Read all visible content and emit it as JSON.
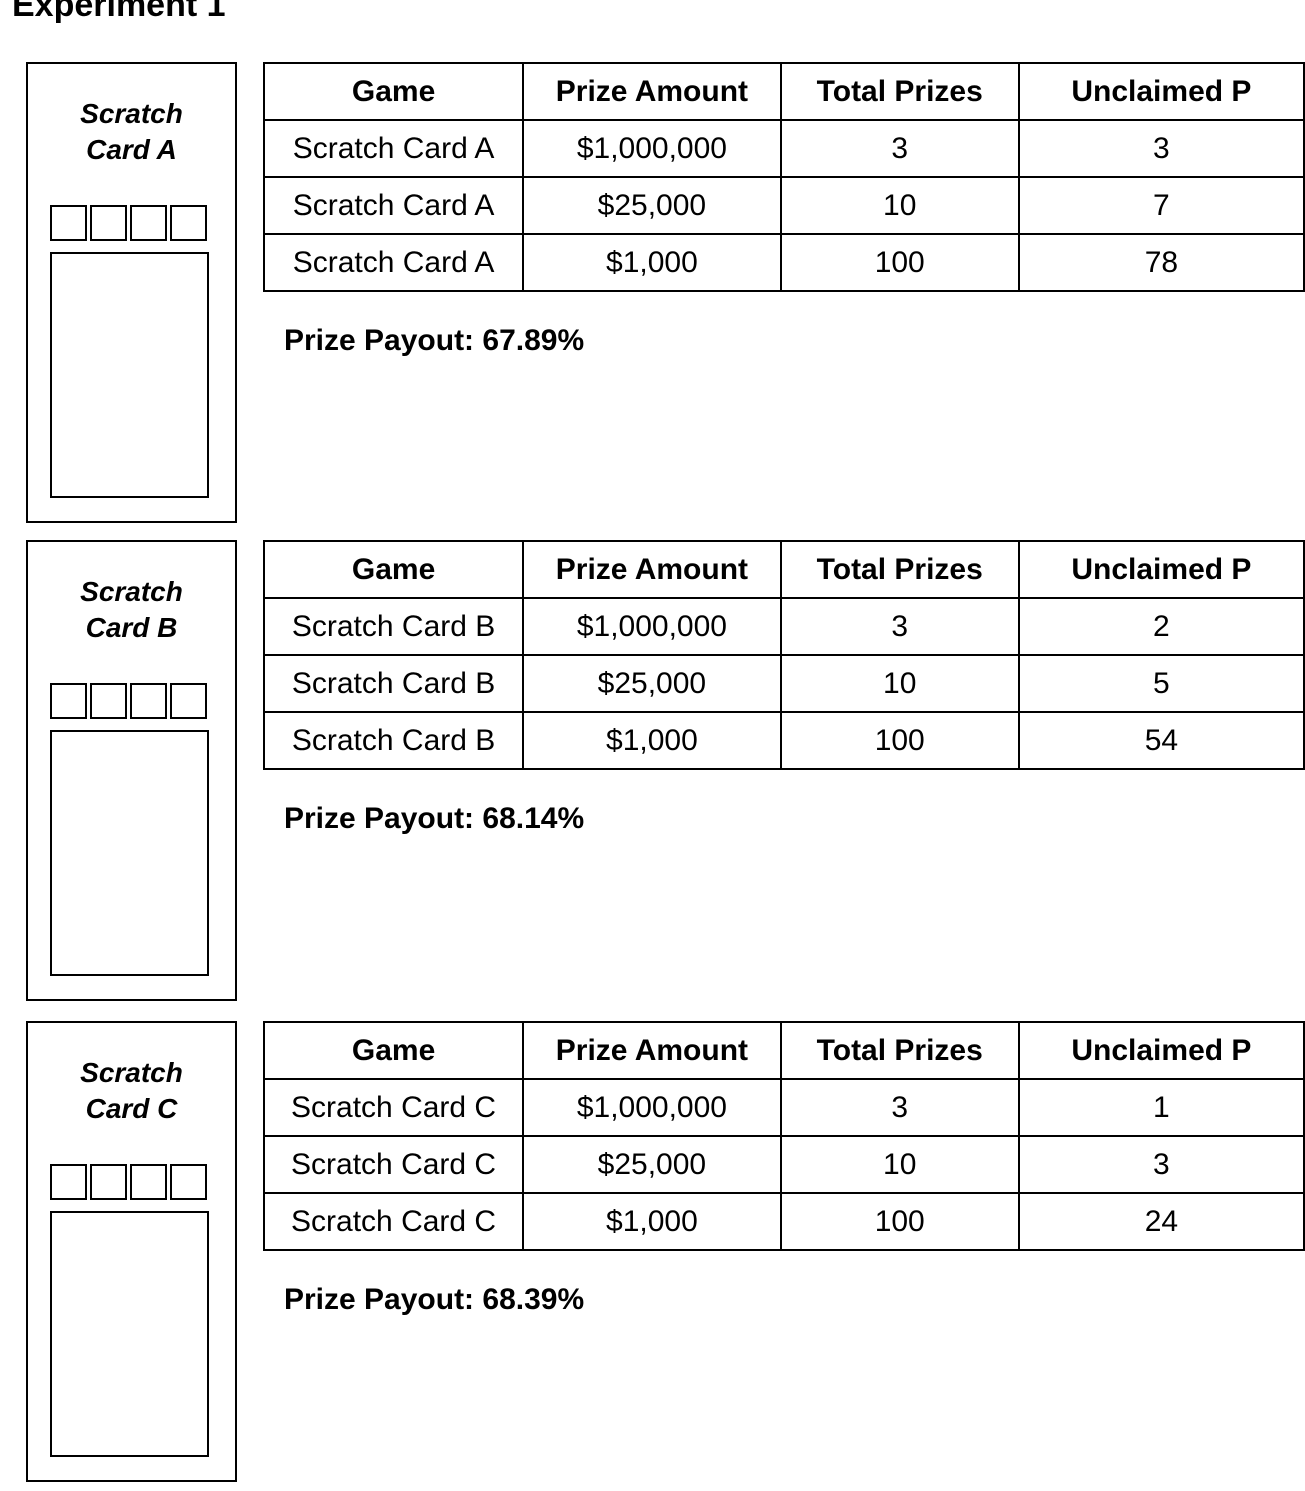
{
  "title": "Experiment 1",
  "columns": [
    "Game",
    "Prize Amount",
    "Total Prizes",
    "Unclaimed P"
  ],
  "sections": [
    {
      "card_line1": "Scratch",
      "card_line2": "Card A",
      "rows": [
        [
          "Scratch Card A",
          "$1,000,000",
          "3",
          "3"
        ],
        [
          "Scratch Card A",
          "$25,000",
          "10",
          "7"
        ],
        [
          "Scratch Card A",
          "$1,000",
          "100",
          "78"
        ]
      ],
      "payout": "Prize Payout: 67.89%"
    },
    {
      "card_line1": "Scratch",
      "card_line2": "Card B",
      "rows": [
        [
          "Scratch Card B",
          "$1,000,000",
          "3",
          "2"
        ],
        [
          "Scratch Card B",
          "$25,000",
          "10",
          "5"
        ],
        [
          "Scratch Card B",
          "$1,000",
          "100",
          "54"
        ]
      ],
      "payout": "Prize Payout: 68.14%"
    },
    {
      "card_line1": "Scratch",
      "card_line2": "Card C",
      "rows": [
        [
          "Scratch Card C",
          "$1,000,000",
          "3",
          "1"
        ],
        [
          "Scratch Card C",
          "$25,000",
          "10",
          "3"
        ],
        [
          "Scratch Card C",
          "$1,000",
          "100",
          "24"
        ]
      ],
      "payout": "Prize Payout: 68.39%"
    }
  ]
}
